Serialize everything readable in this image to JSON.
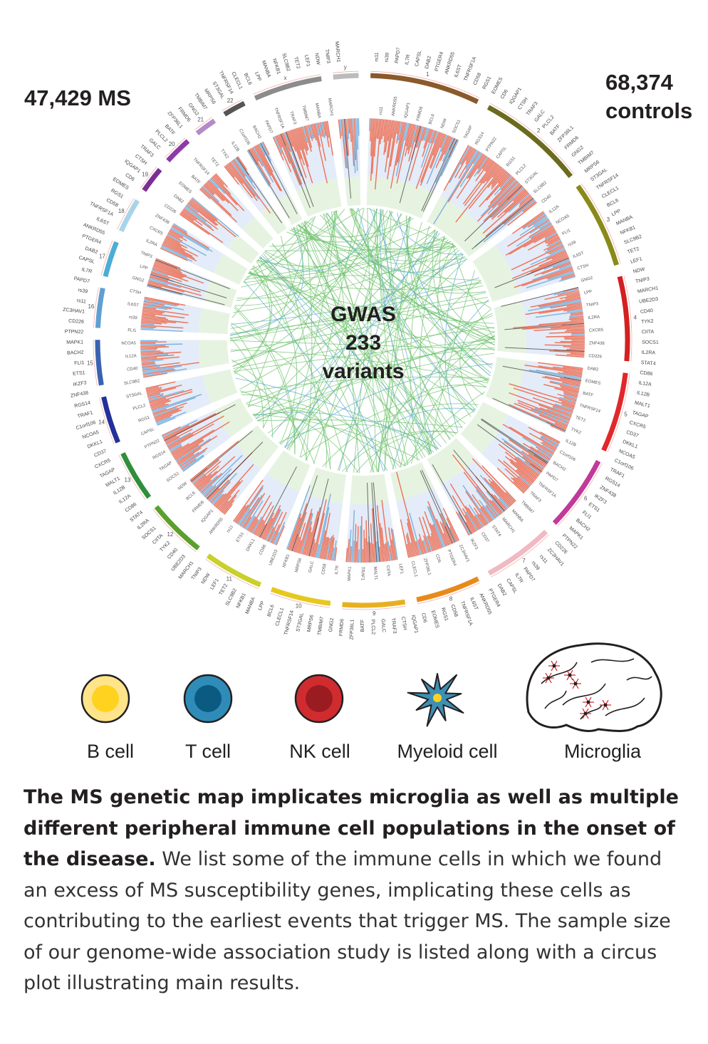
{
  "header": {
    "ms_count": "47,429 MS",
    "controls_count_line1": "68,374",
    "controls_count_line2": "controls"
  },
  "center": {
    "line1": "GWAS",
    "line2": "233",
    "line3": "variants"
  },
  "chromosomes": [
    {
      "label": "1",
      "color": "#8b5a2b",
      "size": 249
    },
    {
      "label": "2",
      "color": "#6b6b1f",
      "size": 243
    },
    {
      "label": "3",
      "color": "#8a8a1a",
      "size": 198
    },
    {
      "label": "4",
      "color": "#d32020",
      "size": 191
    },
    {
      "label": "5",
      "color": "#e0282c",
      "size": 181
    },
    {
      "label": "6",
      "color": "#c03a9a",
      "size": 171
    },
    {
      "label": "7",
      "color": "#f0b9c4",
      "size": 159
    },
    {
      "label": "8",
      "color": "#e88a1a",
      "size": 146
    },
    {
      "label": "9",
      "color": "#e8b020",
      "size": 141
    },
    {
      "label": "10",
      "color": "#e6c81e",
      "size": 136
    },
    {
      "label": "11",
      "color": "#c8d02a",
      "size": 135
    },
    {
      "label": "12",
      "color": "#5aa02c",
      "size": 133
    },
    {
      "label": "13",
      "color": "#2f8f3a",
      "size": 115
    },
    {
      "label": "14",
      "color": "#25309a",
      "size": 107
    },
    {
      "label": "15",
      "color": "#3a62b0",
      "size": 102
    },
    {
      "label": "16",
      "color": "#5fa0d0",
      "size": 90
    },
    {
      "label": "17",
      "color": "#4aaed6",
      "size": 81
    },
    {
      "label": "18",
      "color": "#a8d4ea",
      "size": 78
    },
    {
      "label": "19",
      "color": "#7a2f95",
      "size": 59
    },
    {
      "label": "20",
      "color": "#8c3aa8",
      "size": 63
    },
    {
      "label": "21",
      "color": "#b48ac8",
      "size": 48
    },
    {
      "label": "22",
      "color": "#555555",
      "size": 51
    },
    {
      "label": "x",
      "color": "#8c8c8c",
      "size": 155
    },
    {
      "label": "y",
      "color": "#bcbcbc",
      "size": 57
    }
  ],
  "gene_labels_inner": [
    "rs11",
    "rs39",
    "PAPD7",
    "IL7R",
    "CAPSL",
    "DAB2",
    "PTGER4",
    "ANKRD55",
    "IL6ST",
    "TNFRSF1A",
    "CD58",
    "RGS1",
    "EOMES",
    "CD6",
    "IQGAP1",
    "CTSH",
    "TRAF3",
    "GALC",
    "PLCL2",
    "BATF",
    "ZFP36L1",
    "FRMD6",
    "GNG2",
    "TMBIM7",
    "MRPS6",
    "ST3GAL",
    "TNFRSF14",
    "CLECL1",
    "BCL6",
    "LPP",
    "MANBA",
    "NFKB1",
    "SLC9B2",
    "TET2",
    "LEF1",
    "NDW",
    "TNIP3",
    "MARCH1",
    "UBE2D3",
    "CD40",
    "TYK2",
    "CIITA",
    "SOCS1",
    "IL2RA",
    "STAT4",
    "CD86",
    "IL12A",
    "IL12B",
    "MALT1",
    "TAGAP",
    "CXCR5",
    "CD37",
    "DKKL1",
    "NCOA5",
    "C1orf106",
    "TRAF1",
    "RGS14",
    "ZNF438",
    "IKZF3",
    "ETS1",
    "FLI1",
    "BACH2",
    "MAPK1",
    "PTPN22",
    "CD226",
    "ZC3HAV1"
  ],
  "cells": [
    {
      "name": "B cell",
      "fill": "#ffd21f",
      "outer": "#ffe48a"
    },
    {
      "name": "T cell",
      "fill": "#0a5a82",
      "outer": "#2f8cb8"
    },
    {
      "name": "NK cell",
      "fill": "#9a1b20",
      "outer": "#d02c30"
    },
    {
      "name": "Myeloid cell",
      "fill": "#3d8fb5",
      "nucleus": "#ffd21f"
    },
    {
      "name": "Microglia",
      "fill": "#ffffff",
      "accent": "#d32027"
    }
  ],
  "caption": {
    "bold": "The MS genetic map implicates microglia as well as multiple different peripheral immune cell populations in the onset of the disease.",
    "text": " We list some of the immune cells in which we found an excess of MS susceptibility genes, implicating these cells as contributing to the earliest events that trigger MS. The sample size of our genome-wide association study is listed along with a circus plot illustrating main results."
  },
  "colors": {
    "links_green": "#6cc16a",
    "links_blue": "#5aa7d6",
    "bars_red": "#ee5a3a",
    "bars_blue": "#6aa7d8",
    "ring_blue_bg": "#e3ecf8",
    "ring_green_bg": "#e7f3e1",
    "text_dark": "#231f20"
  }
}
